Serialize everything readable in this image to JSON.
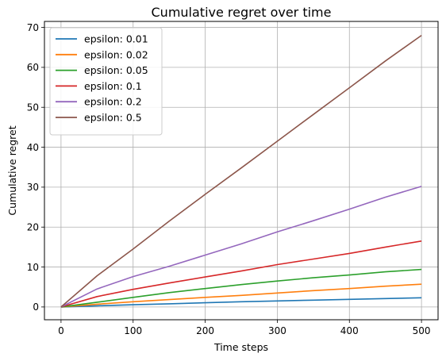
{
  "chart_data": {
    "type": "line",
    "title": "Cumulative regret over time",
    "xlabel": "Time steps",
    "ylabel": "Cumulative regret",
    "xlim": [
      -23,
      523
    ],
    "ylim": [
      -3.2,
      71.5
    ],
    "xticks": [
      0,
      100,
      200,
      300,
      400,
      500
    ],
    "yticks": [
      0,
      10,
      20,
      30,
      40,
      50,
      60,
      70
    ],
    "grid": true,
    "legend_position": "top-left",
    "x": [
      0,
      50,
      100,
      150,
      200,
      250,
      300,
      350,
      400,
      450,
      500
    ],
    "series": [
      {
        "name": "epsilon: 0.01",
        "color": "#1f77b4",
        "values": [
          0,
          0.3,
          0.55,
          0.8,
          1.05,
          1.3,
          1.5,
          1.7,
          1.9,
          2.1,
          2.3
        ]
      },
      {
        "name": "epsilon: 0.02",
        "color": "#ff7f0e",
        "values": [
          0,
          0.7,
          1.3,
          1.85,
          2.4,
          2.9,
          3.5,
          4.1,
          4.6,
          5.2,
          5.7
        ]
      },
      {
        "name": "epsilon: 0.05",
        "color": "#2ca02c",
        "values": [
          0,
          1.2,
          2.4,
          3.6,
          4.6,
          5.6,
          6.5,
          7.3,
          8.0,
          8.8,
          9.4
        ]
      },
      {
        "name": "epsilon: 0.1",
        "color": "#d62728",
        "values": [
          0,
          2.6,
          4.4,
          6.0,
          7.5,
          9.0,
          10.6,
          12.0,
          13.4,
          15.0,
          16.5
        ]
      },
      {
        "name": "epsilon: 0.2",
        "color": "#9467bd",
        "values": [
          0,
          4.5,
          7.6,
          10.2,
          13.0,
          15.8,
          18.8,
          21.6,
          24.5,
          27.5,
          30.2
        ]
      },
      {
        "name": "epsilon: 0.5",
        "color": "#8c564b",
        "values": [
          0,
          7.8,
          14.5,
          21.5,
          28.2,
          34.8,
          41.5,
          48.2,
          54.9,
          61.6,
          68.0
        ]
      }
    ]
  }
}
